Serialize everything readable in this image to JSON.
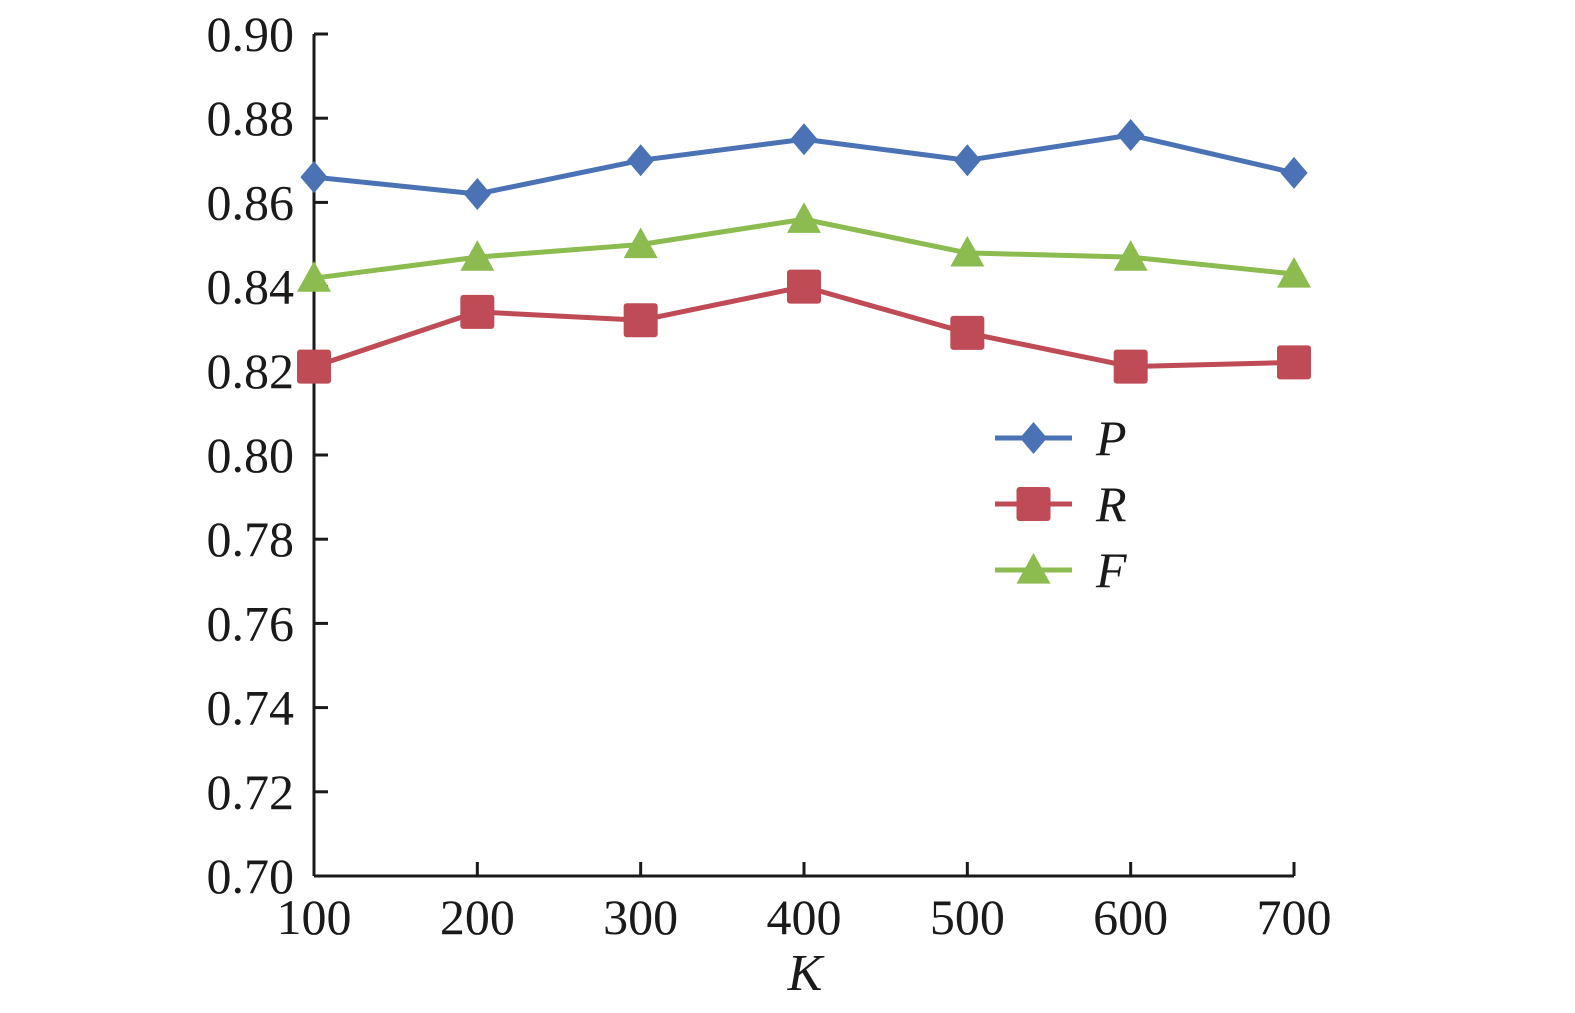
{
  "chart_data": {
    "type": "line",
    "title": "",
    "xlabel": "K",
    "ylabel": "",
    "x": [
      100,
      200,
      300,
      400,
      500,
      600,
      700
    ],
    "ylim": [
      0.7,
      0.9
    ],
    "yticks": [
      "0.70",
      "0.72",
      "0.74",
      "0.76",
      "0.78",
      "0.80",
      "0.82",
      "0.84",
      "0.86",
      "0.88",
      "0.90"
    ],
    "xticks": [
      "100",
      "200",
      "300",
      "400",
      "500",
      "600",
      "700"
    ],
    "grid": false,
    "legend_position": "center-right",
    "series": [
      {
        "name": "P",
        "color": "#4a72b4",
        "marker": "diamond",
        "values": [
          0.866,
          0.862,
          0.87,
          0.875,
          0.87,
          0.876,
          0.867
        ]
      },
      {
        "name": "R",
        "color": "#be4b55",
        "marker": "square",
        "values": [
          0.821,
          0.834,
          0.832,
          0.84,
          0.829,
          0.821,
          0.822
        ]
      },
      {
        "name": "F",
        "color": "#8cbb50",
        "marker": "triangle",
        "values": [
          0.842,
          0.847,
          0.85,
          0.856,
          0.848,
          0.847,
          0.843
        ]
      }
    ]
  }
}
